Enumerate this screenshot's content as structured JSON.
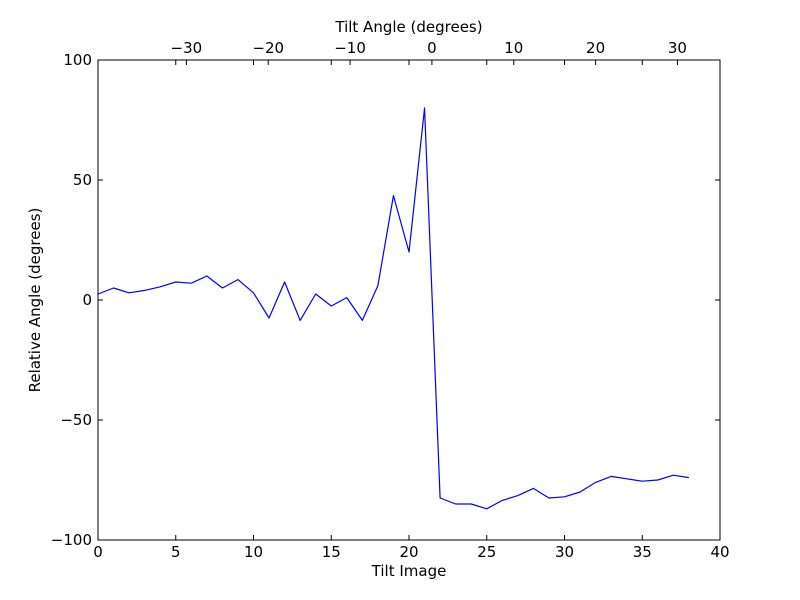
{
  "chart_data": {
    "type": "line",
    "xlabel": "Tilt Image",
    "ylabel": "Relative Angle (degrees)",
    "x2label": "Tilt Angle (degrees)",
    "xlim": [
      0,
      40
    ],
    "ylim": [
      -100,
      100
    ],
    "x2lim": [
      -40.8,
      35.2
    ],
    "xticks": [
      0,
      5,
      10,
      15,
      20,
      25,
      30,
      35,
      40
    ],
    "yticks": [
      -100,
      -50,
      0,
      50,
      100
    ],
    "x2ticks": [
      -30,
      -20,
      -10,
      0,
      10,
      20,
      30
    ],
    "xtick_labels": [
      "0",
      "5",
      "10",
      "15",
      "20",
      "25",
      "30",
      "35",
      "40"
    ],
    "ytick_labels": [
      "−100",
      "−50",
      "0",
      "50",
      "100"
    ],
    "x2tick_labels": [
      "−30",
      "−20",
      "−10",
      "0",
      "10",
      "20",
      "30"
    ],
    "grid": false,
    "series": [
      {
        "color": "#0000ff",
        "x": [
          0,
          1,
          2,
          3,
          4,
          5,
          6,
          7,
          8,
          9,
          10,
          11,
          12,
          13,
          14,
          15,
          16,
          17,
          18,
          19,
          20,
          21,
          22,
          23,
          24,
          25,
          26,
          27,
          28,
          29,
          30,
          31,
          32,
          33,
          34,
          35,
          36,
          37,
          38
        ],
        "y": [
          2.5,
          5,
          3,
          4,
          5.5,
          7.5,
          7,
          10,
          5,
          8.5,
          3,
          -7.5,
          7.5,
          -8.5,
          2.5,
          -2.5,
          1,
          -8.5,
          6,
          43.5,
          20,
          80,
          -82.5,
          -85,
          -85,
          -87,
          -83.5,
          -81.5,
          -78.5,
          -82.5,
          -82,
          -80,
          -76,
          -73.5,
          -74.5,
          -75.5,
          -75,
          -73,
          -74
        ]
      }
    ]
  }
}
